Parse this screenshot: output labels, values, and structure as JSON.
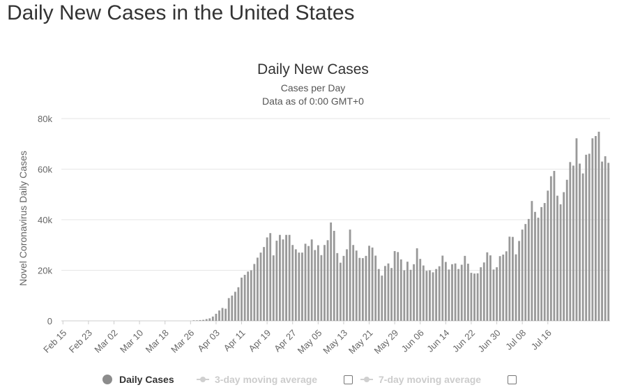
{
  "page": {
    "title": "Daily New Cases in the United States"
  },
  "legend": {
    "items": [
      {
        "label": "Daily Cases",
        "active": true,
        "marker": "circle"
      },
      {
        "label": "3-day moving average",
        "active": false,
        "marker": "line-circle"
      },
      {
        "label": "7-day moving average",
        "active": false,
        "marker": "line-circle"
      }
    ]
  },
  "colors": {
    "bar": "#999999",
    "grid": "#e6e6e6",
    "text": "#333333",
    "axis_text": "#666666",
    "legend_inactive": "#cccccc"
  },
  "chart_data": {
    "type": "bar",
    "title": "Daily New Cases",
    "subtitle": [
      "Cases per Day",
      "Data as of 0:00 GMT+0"
    ],
    "xlabel": "",
    "ylabel": "Novel Coronavirus Daily Cases",
    "ylim": [
      0,
      80000
    ],
    "yticks": [
      0,
      20000,
      40000,
      60000,
      80000
    ],
    "ytick_labels": [
      "0",
      "20k",
      "40k",
      "60k",
      "80k"
    ],
    "xtick_labels": [
      "Feb 15",
      "Feb 23",
      "Mar 02",
      "Mar 10",
      "Mar 18",
      "Mar 26",
      "Apr 03",
      "Apr 11",
      "Apr 19",
      "Apr 27",
      "May 05",
      "May 13",
      "May 21",
      "May 29",
      "Jun 06",
      "Jun 14",
      "Jun 22",
      "Jun 30",
      "Jul 08",
      "Jul 16"
    ],
    "xtick_interval_days": 8,
    "first_date": "Feb 15",
    "grid": true,
    "legend_position": "bottom",
    "series": [
      {
        "name": "Daily Cases",
        "values": [
          0,
          0,
          0,
          0,
          0,
          0,
          0,
          0,
          0,
          0,
          0,
          0,
          0,
          0,
          0,
          0,
          0,
          0,
          0,
          0,
          0,
          0,
          0,
          0,
          0,
          0,
          0,
          0,
          0,
          0,
          0,
          0,
          0,
          0,
          0,
          0,
          0,
          0,
          0,
          0,
          0,
          200,
          200,
          300,
          400,
          700,
          1000,
          1700,
          2800,
          4100,
          5100,
          4800,
          9000,
          10000,
          11500,
          13300,
          17100,
          18200,
          19500,
          20000,
          22500,
          25000,
          27000,
          29200,
          33000,
          34700,
          25900,
          31700,
          34000,
          32200,
          34000,
          34000,
          30000,
          28300,
          27000,
          27000,
          30500,
          29600,
          32200,
          28000,
          29900,
          26000,
          30000,
          31900,
          38900,
          35600,
          26800,
          23000,
          25700,
          28300,
          36100,
          30000,
          27800,
          24900,
          24800,
          25700,
          29700,
          29000,
          25800,
          20500,
          17900,
          21700,
          22700,
          20900,
          27600,
          27200,
          24300,
          20000,
          23400,
          20200,
          22400,
          28700,
          24500,
          21900,
          19800,
          20000,
          19200,
          20500,
          21600,
          25800,
          23300,
          20300,
          22400,
          22700,
          20500,
          22200,
          25700,
          22600,
          19000,
          18700,
          18800,
          21200,
          23100,
          27100,
          25900,
          20300,
          21200,
          25600,
          26200,
          27500,
          33300,
          33200,
          26300,
          31600,
          36100,
          38300,
          40300,
          47400,
          43100,
          40800,
          45000,
          46600,
          51500,
          57200,
          59300,
          49500,
          46100,
          50900,
          55800,
          62800,
          61400,
          72200,
          62200,
          58300,
          65700,
          66100,
          72200,
          73100,
          74800,
          63000,
          65100,
          62500
        ]
      }
    ]
  }
}
